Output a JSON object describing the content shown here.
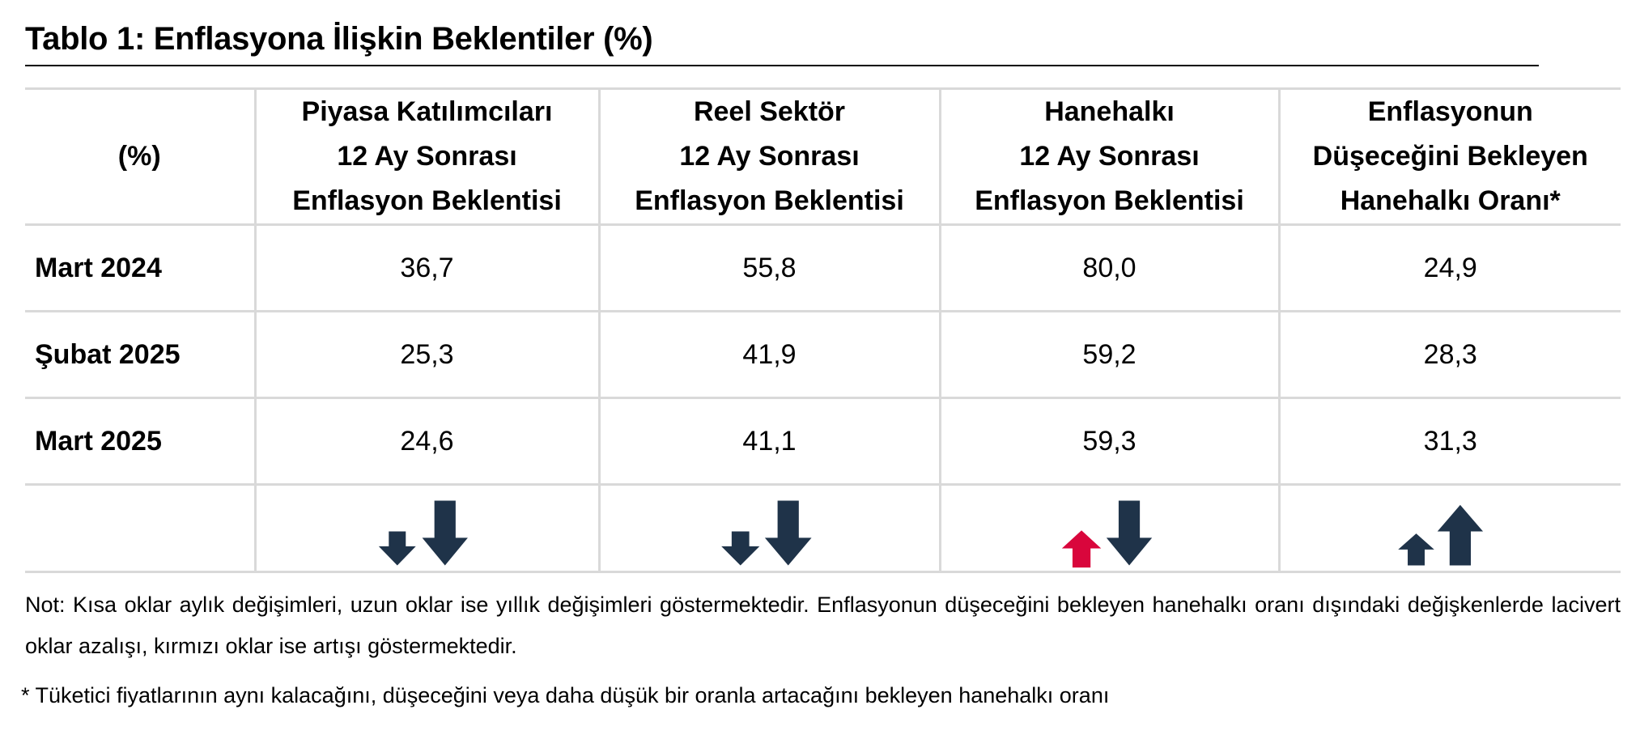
{
  "title": "Tablo 1: Enflasyona İlişkin Beklentiler (%)",
  "table": {
    "header": [
      [
        "(%)"
      ],
      [
        "Piyasa Katılımcıları",
        "12 Ay Sonrası",
        "Enflasyon Beklentisi"
      ],
      [
        "Reel Sektör",
        "12 Ay Sonrası",
        "Enflasyon Beklentisi"
      ],
      [
        "Hanehalkı",
        "12 Ay Sonrası",
        "Enflasyon Beklentisi"
      ],
      [
        "Enflasyonun",
        "Düşeceğini Bekleyen",
        "Hanehalkı Oranı*"
      ]
    ],
    "rows": [
      [
        "Mart 2024",
        "36,7",
        "55,8",
        "80,0",
        "24,9"
      ],
      [
        "Şubat 2025",
        "25,3",
        "41,9",
        "59,2",
        "28,3"
      ],
      [
        "Mart 2025",
        "24,6",
        "41,1",
        "59,3",
        "31,3"
      ]
    ]
  },
  "notes": [
    "Not: Kısa oklar aylık değişimleri, uzun oklar ise yıllık değişimleri göstermektedir. Enflasyonun düşeceğini bekleyen hanehalkı oranı dışındaki değişkenlerde lacivert oklar azalışı, kırmızı oklar ise artışı göstermektedir.",
    "* Tüketici fiyatlarının aynı kalacağını, düşeceğini veya daha düşük bir oranla artacağını bekleyen hanehalkı oranı"
  ]
}
